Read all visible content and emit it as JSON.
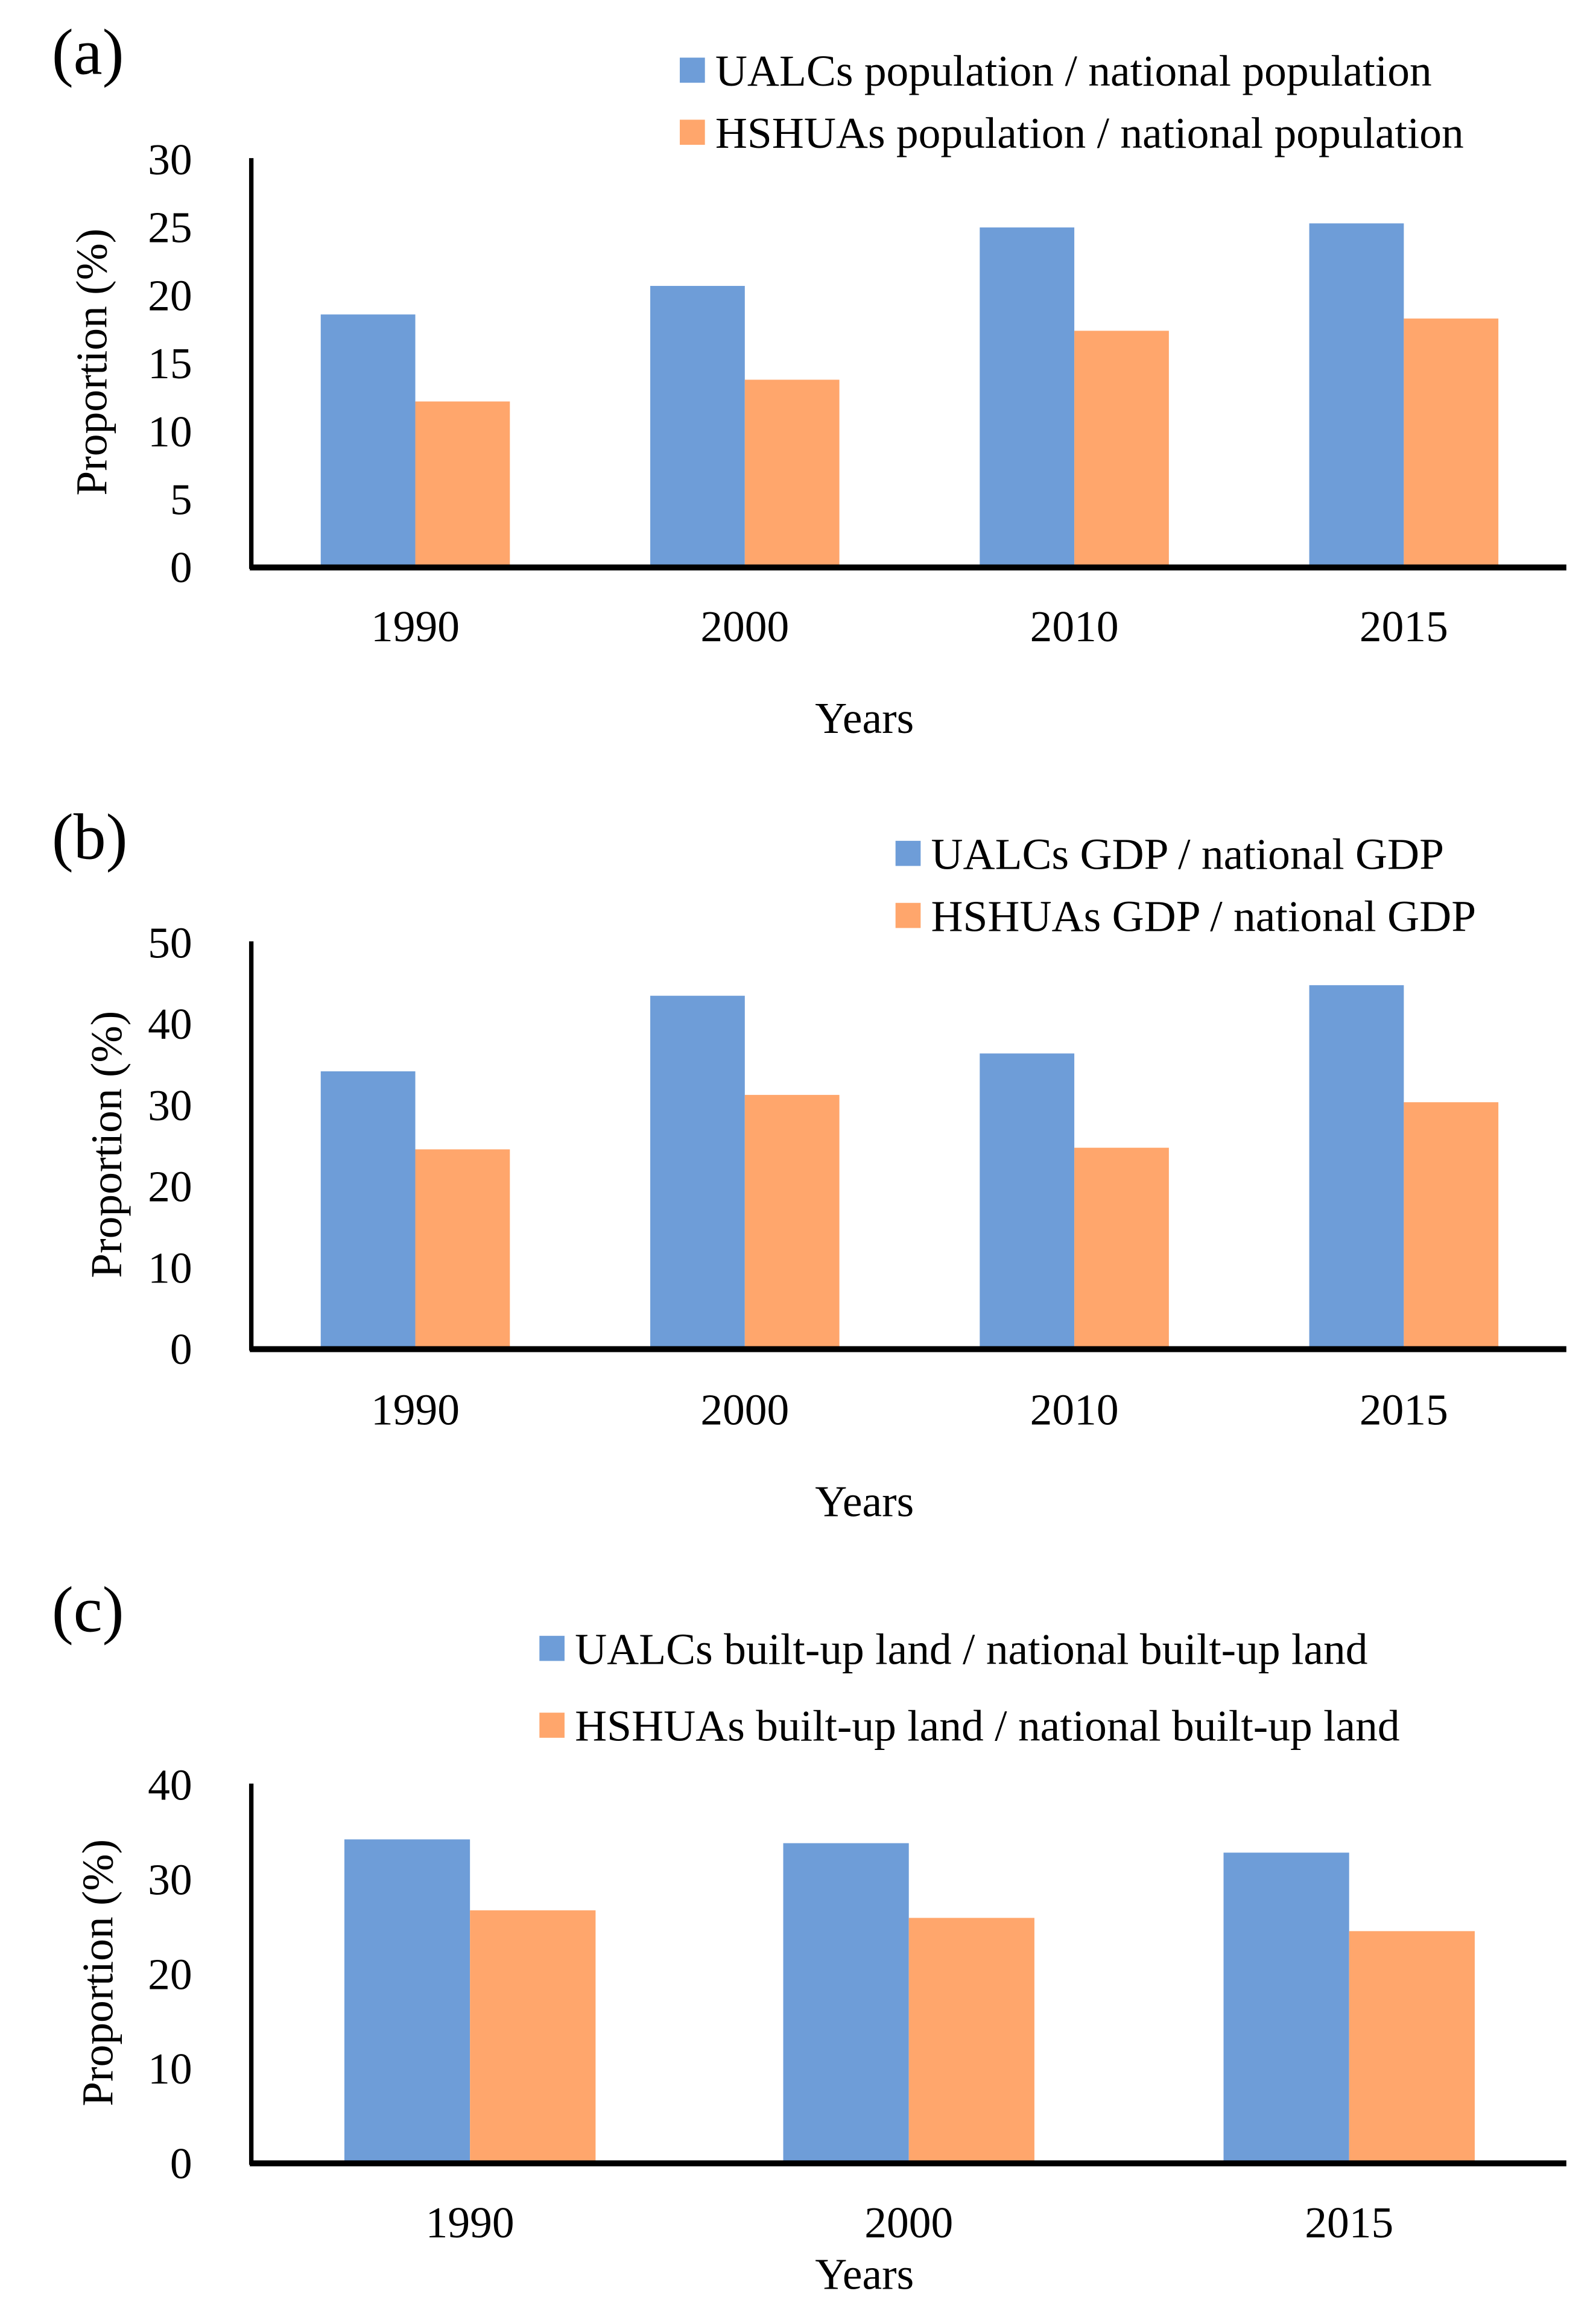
{
  "colors": {
    "series1": "#6E9DD8",
    "series2": "#FFA66C",
    "axis": "#000000"
  },
  "chart_data": [
    {
      "type": "bar",
      "panel_label": "(a)",
      "title": "",
      "xlabel": "Years",
      "ylabel": "Proportion (%)",
      "categories": [
        "1990",
        "2000",
        "2010",
        "2015"
      ],
      "ylim": [
        0,
        30
      ],
      "yticks": [
        0,
        5,
        10,
        15,
        20,
        25,
        30
      ],
      "grid": false,
      "legend_position": "top-right",
      "series": [
        {
          "name": "UALCs population / national population",
          "values": [
            18.5,
            20.6,
            24.9,
            25.2
          ]
        },
        {
          "name": "HSHUAs population / national population",
          "values": [
            12.1,
            13.7,
            17.3,
            18.2
          ]
        }
      ]
    },
    {
      "type": "bar",
      "panel_label": "(b)",
      "title": "",
      "xlabel": "Years",
      "ylabel": "Proportion (%)",
      "categories": [
        "1990",
        "2000",
        "2010",
        "2015"
      ],
      "ylim": [
        0,
        50
      ],
      "yticks": [
        0,
        10,
        20,
        30,
        40,
        50
      ],
      "grid": false,
      "legend_position": "top-right",
      "series": [
        {
          "name": "UALCs GDP / national GDP",
          "values": [
            34.0,
            43.3,
            36.2,
            44.6
          ]
        },
        {
          "name": "HSHUAs GDP / national GDP",
          "values": [
            24.4,
            31.1,
            24.6,
            30.2
          ]
        }
      ]
    },
    {
      "type": "bar",
      "panel_label": "(c)",
      "title": "",
      "xlabel": "Years",
      "ylabel": "Proportion (%)",
      "categories": [
        "1990",
        "2000",
        "2015"
      ],
      "ylim": [
        0,
        40
      ],
      "yticks": [
        0,
        10,
        20,
        30,
        40
      ],
      "grid": false,
      "legend_position": "top-right",
      "series": [
        {
          "name": "UALCs built-up land / national built-up land",
          "values": [
            34.1,
            33.7,
            32.7
          ]
        },
        {
          "name": "HSHUAs built-up land / national built-up land",
          "values": [
            26.6,
            25.8,
            24.4
          ]
        }
      ]
    }
  ]
}
